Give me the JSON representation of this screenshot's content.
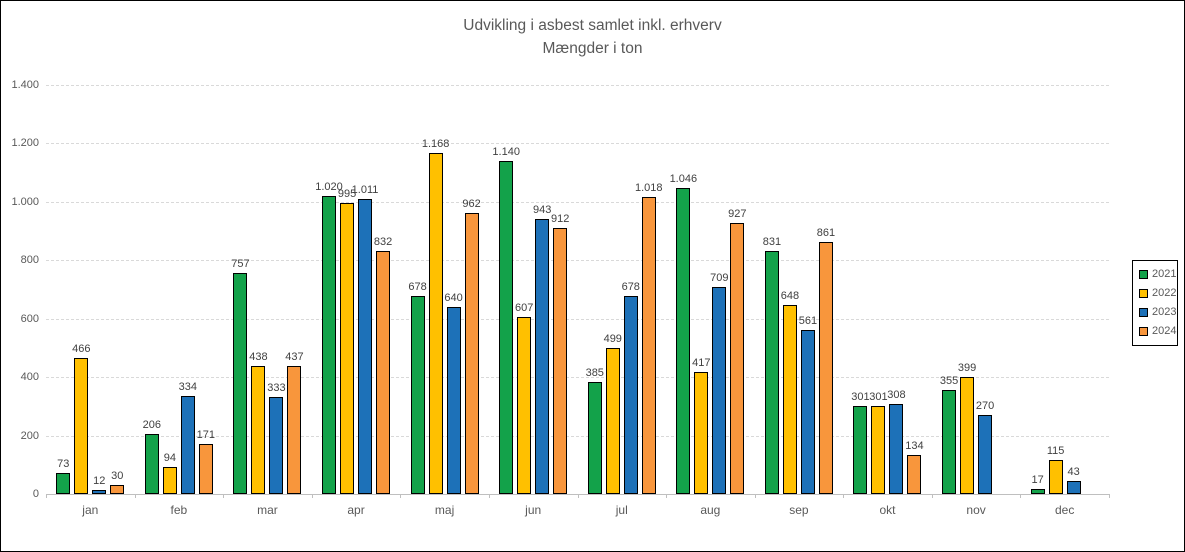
{
  "title": "Udvikling i asbest samlet inkl. erhverv",
  "subtitle": "Mængder i ton",
  "chart_data": {
    "type": "bar",
    "title": "Udvikling i asbest samlet inkl. erhverv",
    "subtitle": "Mængder i ton",
    "categories": [
      "jan",
      "feb",
      "mar",
      "apr",
      "maj",
      "jun",
      "jul",
      "aug",
      "sep",
      "okt",
      "nov",
      "dec"
    ],
    "series": [
      {
        "name": "2021",
        "color": "#13A24A",
        "values": [
          73,
          206,
          757,
          1020,
          678,
          1140,
          385,
          1046,
          831,
          301,
          355,
          17
        ]
      },
      {
        "name": "2022",
        "color": "#FFC000",
        "values": [
          466,
          94,
          438,
          995,
          1168,
          607,
          499,
          417,
          648,
          301,
          399,
          115
        ]
      },
      {
        "name": "2023",
        "color": "#1D71B8",
        "values": [
          12,
          334,
          333,
          1011,
          640,
          943,
          678,
          709,
          561,
          308,
          270,
          43
        ]
      },
      {
        "name": "2024",
        "color": "#F8963C",
        "values": [
          30,
          171,
          437,
          832,
          962,
          912,
          1018,
          927,
          861,
          134,
          null,
          null
        ]
      }
    ],
    "bar_labels": [
      [
        "73",
        "206",
        "757",
        "1.020",
        "678",
        "1.140",
        "385",
        "1.046",
        "831",
        "301",
        "355",
        "17"
      ],
      [
        "466",
        "94",
        "438",
        "995",
        "1.168",
        "607",
        "499",
        "417",
        "648",
        "301",
        "399",
        "115"
      ],
      [
        "12",
        "334",
        "333",
        "1.011",
        "640",
        "943",
        "678",
        "709",
        "561",
        "308",
        "270",
        "43"
      ],
      [
        "30",
        "171",
        "437",
        "832",
        "962",
        "912",
        "1.018",
        "927",
        "861",
        "134",
        null,
        null
      ]
    ],
    "ylim": [
      0,
      1400
    ],
    "ytick_step": 200,
    "ytick_labels": [
      "0",
      "200",
      "400",
      "600",
      "800",
      "1.000",
      "1.200",
      "1.400"
    ],
    "grid": true,
    "legend_position": "right",
    "legend_entries": [
      "2021",
      "2022",
      "2023",
      "2024"
    ]
  },
  "colors": {
    "series_2021": "#13A24A",
    "series_2022": "#FFC000",
    "series_2023": "#1D71B8",
    "series_2024": "#F8963C",
    "gridline": "#d9d9d9",
    "axis_line": "#bfbfbf",
    "title_text": "#595959",
    "axis_text": "#595959",
    "data_label_text": "#404040"
  }
}
